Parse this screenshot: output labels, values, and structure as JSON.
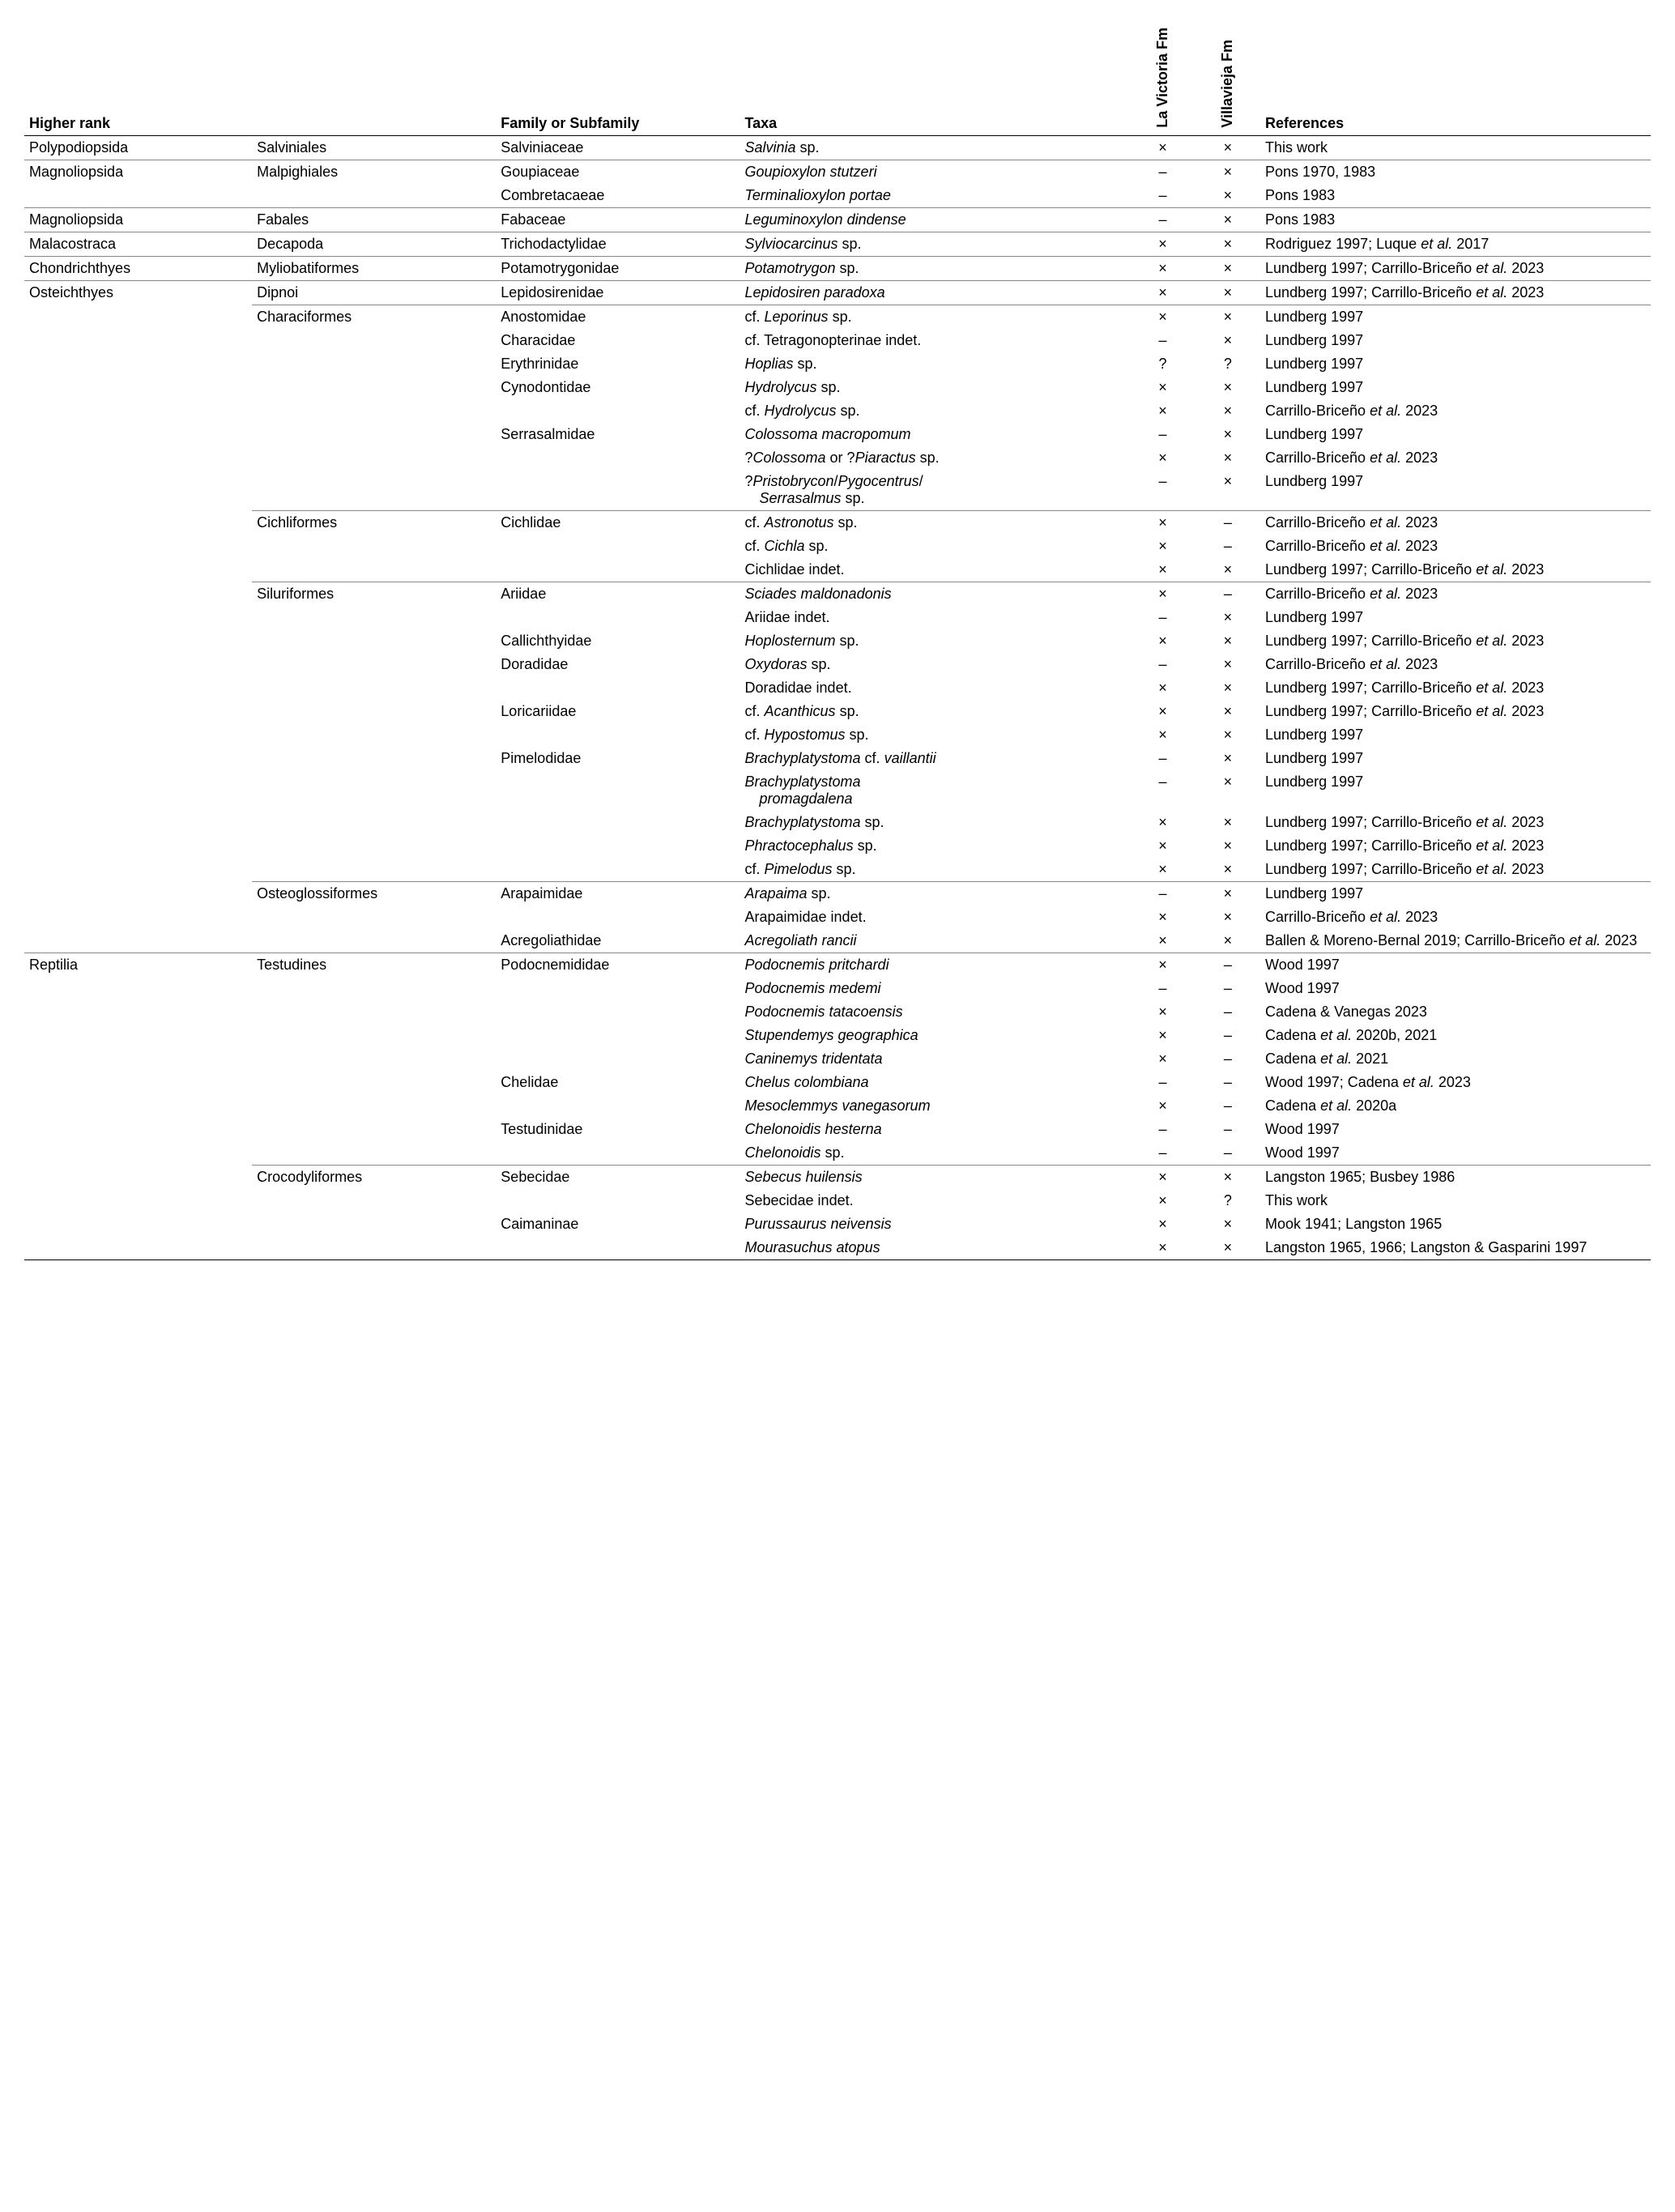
{
  "headers": {
    "higher_rank": "Higher rank",
    "family": "Family or Subfamily",
    "taxa": "Taxa",
    "lav": "La Victoria Fm",
    "vil": "Villavieja Fm",
    "refs": "References"
  },
  "marks": {
    "x": "×",
    "dash": "–",
    "q": "?"
  },
  "rows": [
    {
      "border": "light",
      "c1": "Polypodiopsida",
      "c2": "Salviniales",
      "c3": "Salviniaceae",
      "taxa": [
        [
          "Salvinia",
          "i"
        ],
        [
          " sp.",
          ""
        ]
      ],
      "lav": "x",
      "vil": "x",
      "ref": [
        [
          "This work",
          ""
        ]
      ]
    },
    {
      "border": "light",
      "c1": "Magnoliopsida",
      "c2": "Malpighiales",
      "c3": "Goupiaceae",
      "taxa": [
        [
          "Goupioxylon stutzeri",
          "i"
        ]
      ],
      "lav": "dash",
      "vil": "x",
      "ref": [
        [
          "Pons 1970, 1983",
          ""
        ]
      ]
    },
    {
      "c3": "Combretacaeae",
      "taxa": [
        [
          "Terminalioxylon portae",
          "i"
        ]
      ],
      "lav": "dash",
      "vil": "x",
      "ref": [
        [
          "Pons 1983",
          ""
        ]
      ]
    },
    {
      "border": "light",
      "c1": "Magnoliopsida",
      "c2": "Fabales",
      "c3": "Fabaceae",
      "taxa": [
        [
          "Leguminoxylon dindense",
          "i"
        ]
      ],
      "lav": "dash",
      "vil": "x",
      "ref": [
        [
          "Pons 1983",
          ""
        ]
      ]
    },
    {
      "border": "light",
      "c1": "Malacostraca",
      "c2": "Decapoda",
      "c3": "Trichodactylidae",
      "taxa": [
        [
          "Sylviocarcinus",
          "i"
        ],
        [
          " sp.",
          ""
        ]
      ],
      "lav": "x",
      "vil": "x",
      "ref": [
        [
          "Rodriguez 1997; Luque ",
          ""
        ],
        [
          "et al.",
          "i"
        ],
        [
          " 2017",
          ""
        ]
      ]
    },
    {
      "border": "light",
      "c1": "Chondrichthyes",
      "c2": "Myliobatiformes",
      "c3": "Potamotrygonidae",
      "taxa": [
        [
          "Potamotrygon",
          "i"
        ],
        [
          " sp.",
          ""
        ]
      ],
      "lav": "x",
      "vil": "x",
      "ref": [
        [
          "Lundberg 1997; Carrillo-Briceño ",
          ""
        ],
        [
          "et al.",
          "i"
        ],
        [
          " 2023",
          ""
        ]
      ]
    },
    {
      "border": "light",
      "c1": "Osteichthyes",
      "c2": "Dipnoi",
      "c3": "Lepidosirenidae",
      "taxa": [
        [
          "Lepidosiren paradoxa",
          "i"
        ]
      ],
      "lav": "x",
      "vil": "x",
      "ref": [
        [
          "Lundberg 1997; Carrillo-Briceño ",
          ""
        ],
        [
          "et al.",
          "i"
        ],
        [
          " 2023",
          ""
        ]
      ]
    },
    {
      "border": "p234567",
      "c2": "Characiformes",
      "c3": "Anostomidae",
      "taxa": [
        [
          "cf. ",
          ""
        ],
        [
          "Leporinus",
          "i"
        ],
        [
          " sp.",
          ""
        ]
      ],
      "lav": "x",
      "vil": "x",
      "ref": [
        [
          "Lundberg 1997",
          ""
        ]
      ]
    },
    {
      "c3": "Characidae",
      "taxa": [
        [
          "cf. Tetragonopterinae indet.",
          ""
        ]
      ],
      "lav": "dash",
      "vil": "x",
      "ref": [
        [
          "Lundberg 1997",
          ""
        ]
      ]
    },
    {
      "c3": "Erythrinidae",
      "taxa": [
        [
          "Hoplias",
          "i"
        ],
        [
          " sp.",
          ""
        ]
      ],
      "lav": "q",
      "vil": "q",
      "ref": [
        [
          "Lundberg 1997",
          ""
        ]
      ]
    },
    {
      "c3": "Cynodontidae",
      "taxa": [
        [
          "Hydrolycus",
          "i"
        ],
        [
          " sp.",
          ""
        ]
      ],
      "lav": "x",
      "vil": "x",
      "ref": [
        [
          "Lundberg 1997",
          ""
        ]
      ]
    },
    {
      "taxa": [
        [
          "cf. ",
          ""
        ],
        [
          "Hydrolycus",
          "i"
        ],
        [
          " sp.",
          ""
        ]
      ],
      "lav": "x",
      "vil": "x",
      "ref": [
        [
          "Carrillo-Briceño ",
          ""
        ],
        [
          "et al.",
          "i"
        ],
        [
          " 2023",
          ""
        ]
      ]
    },
    {
      "c3": "Serrasalmidae",
      "taxa": [
        [
          "Colossoma macropomum",
          "i"
        ]
      ],
      "lav": "dash",
      "vil": "x",
      "ref": [
        [
          "Lundberg 1997",
          ""
        ]
      ]
    },
    {
      "taxa": [
        [
          "?",
          ""
        ],
        [
          "Colossoma",
          "i"
        ],
        [
          " or ?",
          ""
        ],
        [
          "Piaractus",
          "i"
        ],
        [
          " sp.",
          ""
        ]
      ],
      "lav": "x",
      "vil": "x",
      "ref": [
        [
          "Carrillo-Briceño ",
          ""
        ],
        [
          "et al.",
          "i"
        ],
        [
          " 2023",
          ""
        ]
      ]
    },
    {
      "taxa": [
        [
          "?",
          ""
        ],
        [
          "Pristobrycon",
          "i"
        ],
        [
          "/",
          ""
        ],
        [
          "Pygocentrus",
          "i"
        ],
        [
          "/",
          ""
        ]
      ],
      "taxa2": [
        [
          "Serrasalmus",
          "i"
        ],
        [
          " sp.",
          ""
        ]
      ],
      "lav": "dash",
      "vil": "x",
      "ref": [
        [
          "Lundberg 1997",
          ""
        ]
      ]
    },
    {
      "border": "p234567",
      "c2": "Cichliformes",
      "c3": "Cichlidae",
      "taxa": [
        [
          "cf. ",
          ""
        ],
        [
          "Astronotus",
          "i"
        ],
        [
          " sp.",
          ""
        ]
      ],
      "lav": "x",
      "vil": "dash",
      "ref": [
        [
          "Carrillo-Briceño ",
          ""
        ],
        [
          "et al.",
          "i"
        ],
        [
          " 2023",
          ""
        ]
      ]
    },
    {
      "taxa": [
        [
          "cf. ",
          ""
        ],
        [
          "Cichla",
          "i"
        ],
        [
          " sp.",
          ""
        ]
      ],
      "lav": "x",
      "vil": "dash",
      "ref": [
        [
          "Carrillo-Briceño ",
          ""
        ],
        [
          "et al.",
          "i"
        ],
        [
          " 2023",
          ""
        ]
      ]
    },
    {
      "taxa": [
        [
          "Cichlidae indet.",
          ""
        ]
      ],
      "lav": "x",
      "vil": "x",
      "ref": [
        [
          "Lundberg 1997; Carrillo-Briceño ",
          ""
        ],
        [
          "et al.",
          "i"
        ],
        [
          " 2023",
          ""
        ]
      ]
    },
    {
      "border": "p234567",
      "c2": "Siluriformes",
      "c3": "Ariidae",
      "taxa": [
        [
          "Sciades maldonadonis",
          "i"
        ]
      ],
      "lav": "x",
      "vil": "dash",
      "ref": [
        [
          "Carrillo-Briceño ",
          ""
        ],
        [
          "et al.",
          "i"
        ],
        [
          " 2023",
          ""
        ]
      ]
    },
    {
      "taxa": [
        [
          "Ariidae indet.",
          ""
        ]
      ],
      "lav": "dash",
      "vil": "x",
      "ref": [
        [
          "Lundberg 1997",
          ""
        ]
      ]
    },
    {
      "c3": "Callichthyidae",
      "taxa": [
        [
          "Hoplosternum",
          "i"
        ],
        [
          " sp.",
          ""
        ]
      ],
      "lav": "x",
      "vil": "x",
      "ref": [
        [
          "Lundberg 1997; Carrillo-Briceño ",
          ""
        ],
        [
          "et al.",
          "i"
        ],
        [
          " 2023",
          ""
        ]
      ]
    },
    {
      "c3": "Doradidae",
      "taxa": [
        [
          "Oxydoras",
          "i"
        ],
        [
          " sp.",
          ""
        ]
      ],
      "lav": "dash",
      "vil": "x",
      "ref": [
        [
          "Carrillo-Briceño ",
          ""
        ],
        [
          "et al.",
          "i"
        ],
        [
          " 2023",
          ""
        ]
      ]
    },
    {
      "taxa": [
        [
          "Doradidae indet.",
          ""
        ]
      ],
      "lav": "x",
      "vil": "x",
      "ref": [
        [
          "Lundberg 1997; Carrillo-Briceño ",
          ""
        ],
        [
          "et al.",
          "i"
        ],
        [
          " 2023",
          ""
        ]
      ]
    },
    {
      "c3": "Loricariidae",
      "taxa": [
        [
          "cf. ",
          ""
        ],
        [
          "Acanthicus",
          "i"
        ],
        [
          " sp.",
          ""
        ]
      ],
      "lav": "x",
      "vil": "x",
      "ref": [
        [
          "Lundberg 1997; Carrillo-Briceño ",
          ""
        ],
        [
          "et al.",
          "i"
        ],
        [
          " 2023",
          ""
        ]
      ]
    },
    {
      "taxa": [
        [
          "cf. ",
          ""
        ],
        [
          "Hypostomus",
          "i"
        ],
        [
          " sp.",
          ""
        ]
      ],
      "lav": "x",
      "vil": "x",
      "ref": [
        [
          "Lundberg 1997",
          ""
        ]
      ]
    },
    {
      "c3": "Pimelodidae",
      "taxa": [
        [
          "Brachyplatystoma",
          "i"
        ],
        [
          " cf. ",
          ""
        ],
        [
          "vaillantii",
          "i"
        ]
      ],
      "lav": "dash",
      "vil": "x",
      "ref": [
        [
          "Lundberg 1997",
          ""
        ]
      ]
    },
    {
      "taxa": [
        [
          "Brachyplatystoma",
          "i"
        ]
      ],
      "taxa2": [
        [
          "promagdalena",
          "i"
        ]
      ],
      "lav": "dash",
      "vil": "x",
      "ref": [
        [
          "Lundberg 1997",
          ""
        ]
      ]
    },
    {
      "taxa": [
        [
          "Brachyplatystoma",
          "i"
        ],
        [
          " sp.",
          ""
        ]
      ],
      "lav": "x",
      "vil": "x",
      "ref": [
        [
          "Lundberg 1997; Carrillo-Briceño ",
          ""
        ],
        [
          "et al.",
          "i"
        ],
        [
          " 2023",
          ""
        ]
      ]
    },
    {
      "taxa": [
        [
          "Phractocephalus",
          "i"
        ],
        [
          " sp.",
          ""
        ]
      ],
      "lav": "x",
      "vil": "x",
      "ref": [
        [
          "Lundberg 1997; Carrillo-Briceño ",
          ""
        ],
        [
          "et al.",
          "i"
        ],
        [
          " 2023",
          ""
        ]
      ]
    },
    {
      "taxa": [
        [
          "cf. ",
          ""
        ],
        [
          "Pimelodus",
          "i"
        ],
        [
          " sp.",
          ""
        ]
      ],
      "lav": "x",
      "vil": "x",
      "ref": [
        [
          "Lundberg 1997; Carrillo-Briceño ",
          ""
        ],
        [
          "et al.",
          "i"
        ],
        [
          " 2023",
          ""
        ]
      ]
    },
    {
      "border": "p234567",
      "c2": "Osteoglossiformes",
      "c3": "Arapaimidae",
      "taxa": [
        [
          "Arapaima",
          "i"
        ],
        [
          " sp.",
          ""
        ]
      ],
      "lav": "dash",
      "vil": "x",
      "ref": [
        [
          "Lundberg 1997",
          ""
        ]
      ]
    },
    {
      "taxa": [
        [
          "Arapaimidae indet.",
          ""
        ]
      ],
      "lav": "x",
      "vil": "x",
      "ref": [
        [
          "Carrillo-Briceño ",
          ""
        ],
        [
          "et al.",
          "i"
        ],
        [
          " 2023",
          ""
        ]
      ]
    },
    {
      "c3": "Acregoliathidae",
      "taxa": [
        [
          "Acregoliath rancii",
          "i"
        ]
      ],
      "lav": "x",
      "vil": "x",
      "ref": [
        [
          "Ballen & Moreno-Bernal 2019; Carrillo-Briceño ",
          ""
        ],
        [
          "et al.",
          "i"
        ],
        [
          " 2023",
          ""
        ]
      ]
    },
    {
      "border": "light",
      "c1": "Reptilia",
      "c2": "Testudines",
      "c3": "Podocnemididae",
      "taxa": [
        [
          "Podocnemis pritchardi",
          "i"
        ]
      ],
      "lav": "x",
      "vil": "dash",
      "ref": [
        [
          "Wood 1997",
          ""
        ]
      ]
    },
    {
      "taxa": [
        [
          "Podocnemis medemi",
          "i"
        ]
      ],
      "lav": "dash",
      "vil": "dash",
      "ref": [
        [
          "Wood 1997",
          ""
        ]
      ]
    },
    {
      "taxa": [
        [
          "Podocnemis tatacoensis",
          "i"
        ]
      ],
      "lav": "x",
      "vil": "dash",
      "ref": [
        [
          "Cadena & Vanegas 2023",
          ""
        ]
      ]
    },
    {
      "taxa": [
        [
          "Stupendemys geographica",
          "i"
        ]
      ],
      "lav": "x",
      "vil": "dash",
      "ref": [
        [
          "Cadena ",
          ""
        ],
        [
          "et al.",
          "i"
        ],
        [
          " 2020b, 2021",
          ""
        ]
      ]
    },
    {
      "taxa": [
        [
          "Caninemys tridentata",
          "i"
        ]
      ],
      "lav": "x",
      "vil": "dash",
      "ref": [
        [
          "Cadena ",
          ""
        ],
        [
          "et al.",
          "i"
        ],
        [
          " 2021",
          ""
        ]
      ]
    },
    {
      "c3": "Chelidae",
      "taxa": [
        [
          "Chelus colombiana",
          "i"
        ]
      ],
      "lav": "dash",
      "vil": "dash",
      "ref": [
        [
          "Wood 1997; Cadena ",
          ""
        ],
        [
          "et al.",
          "i"
        ],
        [
          " 2023",
          ""
        ]
      ]
    },
    {
      "taxa": [
        [
          "Mesoclemmys vanegasorum",
          "i"
        ]
      ],
      "lav": "x",
      "vil": "dash",
      "ref": [
        [
          "Cadena ",
          ""
        ],
        [
          "et al.",
          "i"
        ],
        [
          " 2020a",
          ""
        ]
      ]
    },
    {
      "c3": "Testudinidae",
      "taxa": [
        [
          "Chelonoidis hesterna",
          "i"
        ]
      ],
      "lav": "dash",
      "vil": "dash",
      "ref": [
        [
          "Wood 1997",
          ""
        ]
      ]
    },
    {
      "taxa": [
        [
          "Chelonoidis",
          "i"
        ],
        [
          " sp.",
          ""
        ]
      ],
      "lav": "dash",
      "vil": "dash",
      "ref": [
        [
          "Wood 1997",
          ""
        ]
      ]
    },
    {
      "border": "p234567",
      "c2": "Crocodyliformes",
      "c3": "Sebecidae",
      "taxa": [
        [
          "Sebecus huilensis",
          "i"
        ]
      ],
      "lav": "x",
      "vil": "x",
      "ref": [
        [
          "Langston 1965; Busbey 1986",
          ""
        ]
      ]
    },
    {
      "taxa": [
        [
          "Sebecidae indet.",
          ""
        ]
      ],
      "lav": "x",
      "vil": "q",
      "ref": [
        [
          "This work",
          ""
        ]
      ]
    },
    {
      "c3": "Caimaninae",
      "taxa": [
        [
          "Purussaurus neivensis",
          "i"
        ]
      ],
      "lav": "x",
      "vil": "x",
      "ref": [
        [
          "Mook 1941; Langston 1965",
          ""
        ]
      ]
    },
    {
      "last": true,
      "taxa": [
        [
          "Mourasuchus atopus",
          "i"
        ]
      ],
      "lav": "x",
      "vil": "x",
      "ref": [
        [
          "Langston 1965, 1966; Langston & Gasparini 1997",
          ""
        ]
      ]
    }
  ]
}
